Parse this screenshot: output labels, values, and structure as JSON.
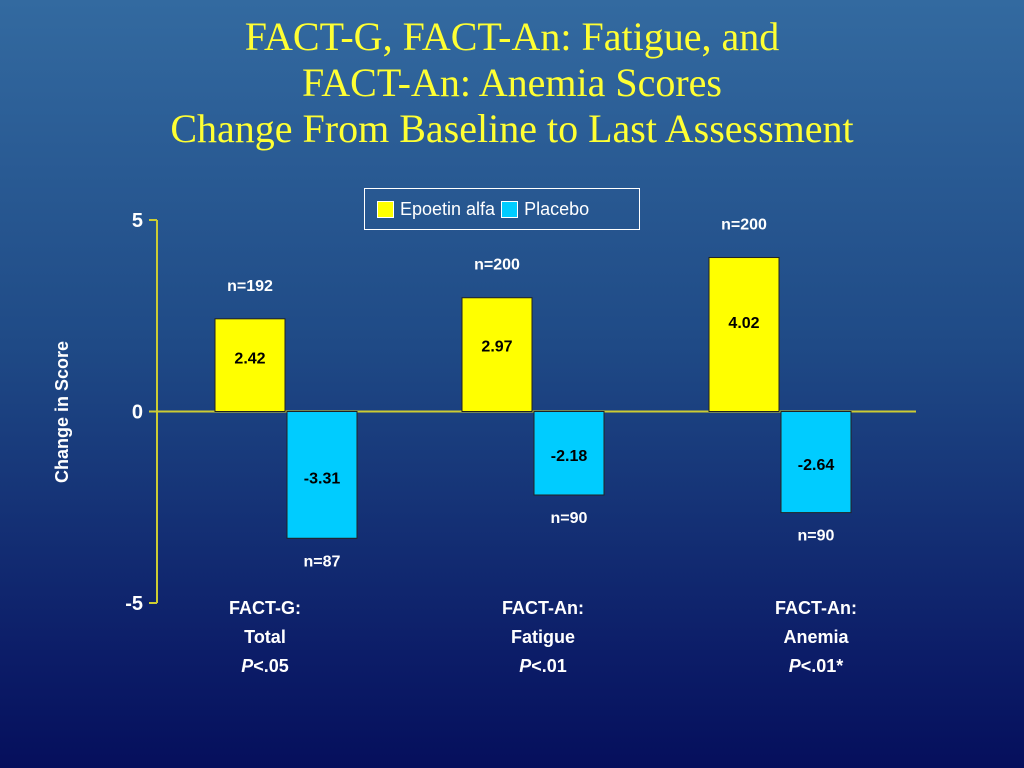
{
  "title": {
    "line1": "FACT-G, FACT-An: Fatigue, and",
    "line2": "FACT-An: Anemia Scores",
    "line3": "Change From Baseline to Last Assessment"
  },
  "colors": {
    "title": "#ffff33",
    "epoetin": "#ffff00",
    "placebo": "#00ccff",
    "axis": "#cccc33"
  },
  "chart_data": {
    "type": "bar",
    "ylabel": "Change in Score",
    "ylim": [
      -5,
      5
    ],
    "yticks": [
      "5",
      "0",
      "-5"
    ],
    "legend_position": "top-right",
    "categories": [
      {
        "name": "FACT-G:",
        "sub": "Total",
        "p_italic": "P",
        "p_rest": "<.05"
      },
      {
        "name": "FACT-An:",
        "sub": "Fatigue",
        "p_italic": "P",
        "p_rest": "<.01"
      },
      {
        "name": "FACT-An:",
        "sub": "Anemia",
        "p_italic": "P",
        "p_rest": "<.01*"
      }
    ],
    "series": [
      {
        "name": "Epoetin alfa",
        "values": [
          2.42,
          2.97,
          4.02
        ],
        "labels": [
          "2.42",
          "2.97",
          "4.02"
        ],
        "n": [
          "n=192",
          "n=200",
          "n=200"
        ]
      },
      {
        "name": "Placebo",
        "values": [
          -3.31,
          -2.18,
          -2.64
        ],
        "labels": [
          "-3.31",
          "-2.18",
          "-2.64"
        ],
        "n": [
          "n=87",
          "n=90",
          "n=90"
        ]
      }
    ]
  }
}
